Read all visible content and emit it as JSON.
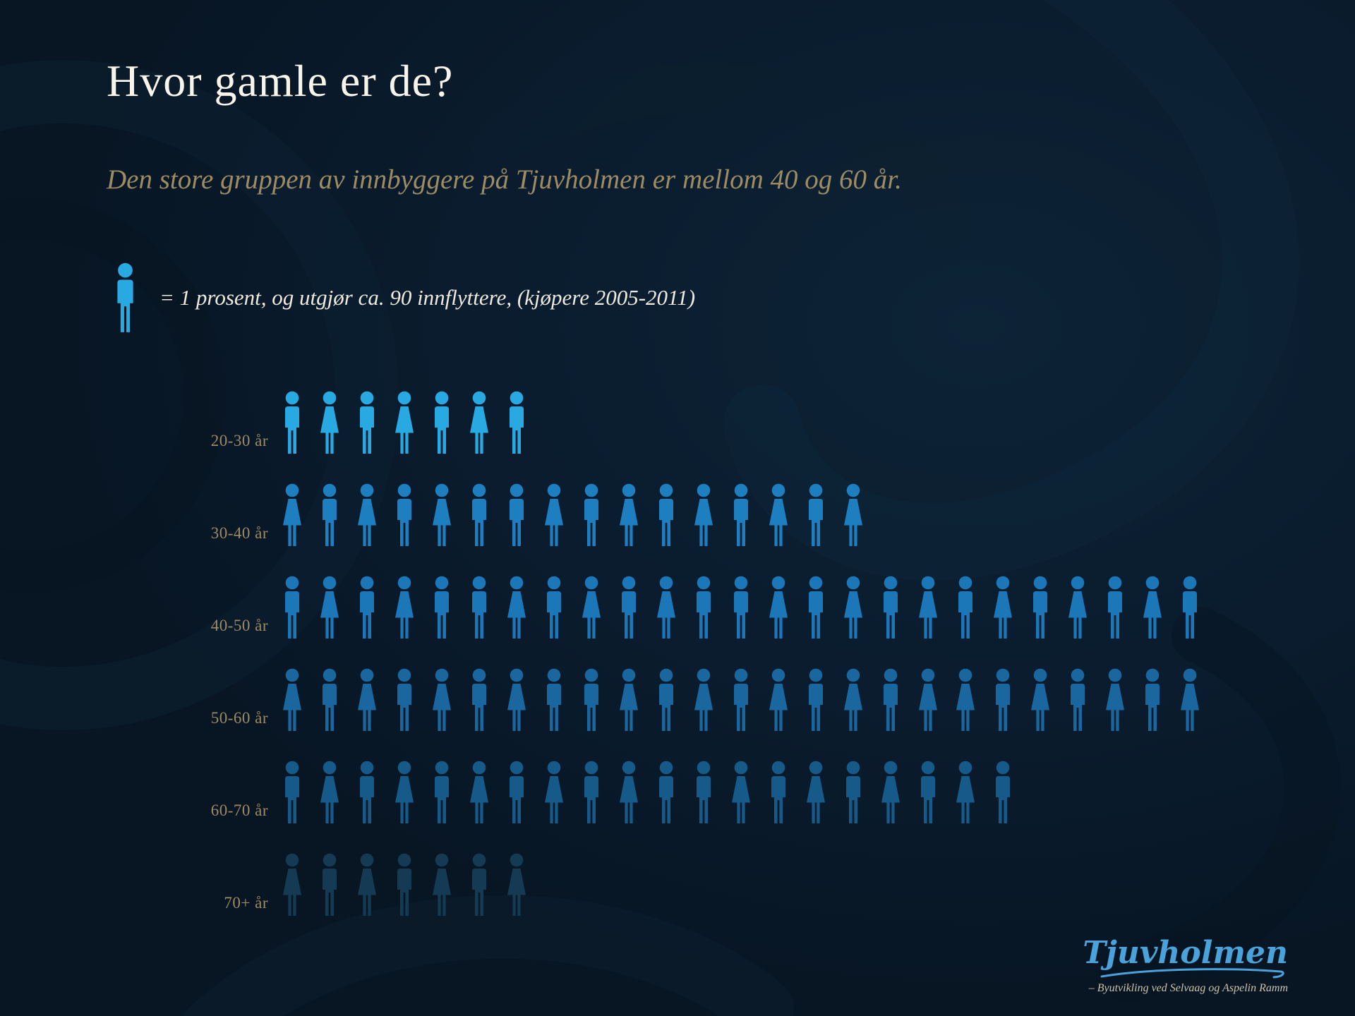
{
  "page": {
    "title": "Hvor gamle er de?",
    "subtitle": "Den store gruppen av innbyggere på Tjuvholmen er mellom 40 og 60 år."
  },
  "palette": {
    "background": "#0a1b2b",
    "title_color": "#f8f4e9",
    "gold_text": "#9d8b63",
    "legend_text_color": "#efeade",
    "bright_icon_blue": "#29a9e1",
    "logo_blue": "#4aa2da"
  },
  "legend": {
    "icon": "person-icon",
    "icon_color": "#29a9e1",
    "text": "= 1 prosent, og utgjør ca. 90 innflyttere, (kjøpere 2005-2011)"
  },
  "chart_data": {
    "type": "bar",
    "variant": "pictogram",
    "orientation": "horizontal",
    "unit": "1 icon = 1 prosent (ca. 90 innflyttere, kjøpere 2005-2011)",
    "categories": [
      "20-30 år",
      "30-40 år",
      "40-50 år",
      "50-60 år",
      "60-70 år",
      "70+ år"
    ],
    "values": [
      7,
      16,
      25,
      25,
      20,
      7
    ],
    "value_unit": "prosent",
    "legend_position": "top-left",
    "grid": false,
    "rows": [
      {
        "label": "20-30 år",
        "count": 7,
        "pattern": "MFMFMFM",
        "color": "#29a9e1"
      },
      {
        "label": "30-40 år",
        "count": 16,
        "pattern": "FMFMFMMFMFMFMFMF",
        "color": "#1d7ec0"
      },
      {
        "label": "40-50 år",
        "count": 25,
        "pattern": "MFMFMMFMFMFMMFMFMFMFMFMFM",
        "color": "#1c77b8"
      },
      {
        "label": "50-60 år",
        "count": 25,
        "pattern": "FMFMFMFMMFMFMFMFMFFMFMFMF",
        "color": "#19679e"
      },
      {
        "label": "60-70 år",
        "count": 20,
        "pattern": "MFMFMFMFMFMMFMFMFMFM",
        "color": "#165a89"
      },
      {
        "label": "70+ år",
        "count": 7,
        "pattern": "FMFMFMF",
        "color": "#143a54"
      }
    ]
  },
  "footer": {
    "logo_text": "Tjuvholmen",
    "logo_tagline": "– Byutvikling ved Selvaag og Aspelin Ramm"
  }
}
